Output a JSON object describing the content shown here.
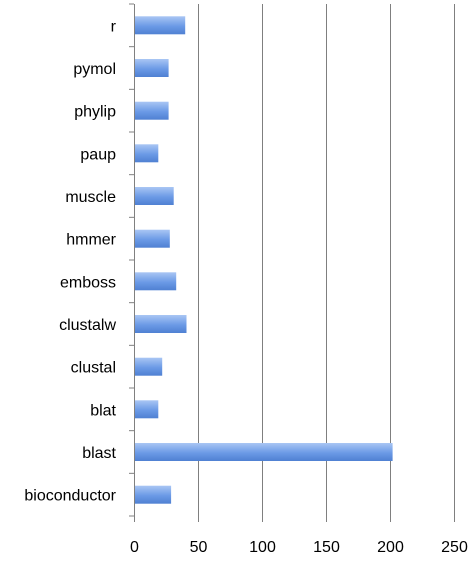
{
  "chart_data": {
    "type": "bar",
    "orientation": "horizontal",
    "categories": [
      "r",
      "pymol",
      "phylip",
      "paup",
      "muscle",
      "hmmer",
      "emboss",
      "clustalw",
      "clustal",
      "blat",
      "blast",
      "bioconductor"
    ],
    "values": [
      40,
      27,
      27,
      19,
      31,
      28,
      33,
      41,
      22,
      19,
      202,
      29
    ],
    "xlim": [
      0,
      250
    ],
    "xticks": [
      0,
      50,
      100,
      150,
      200,
      250
    ],
    "grid": true,
    "legend": "none",
    "title": "",
    "xlabel": "",
    "ylabel": "",
    "colors": {
      "bar_top": "#a9c6f4",
      "bar_mid": "#6b9ae6",
      "bar_bottom": "#4f80d2",
      "grid": "#7f7f7f",
      "axis": "#808080"
    }
  }
}
